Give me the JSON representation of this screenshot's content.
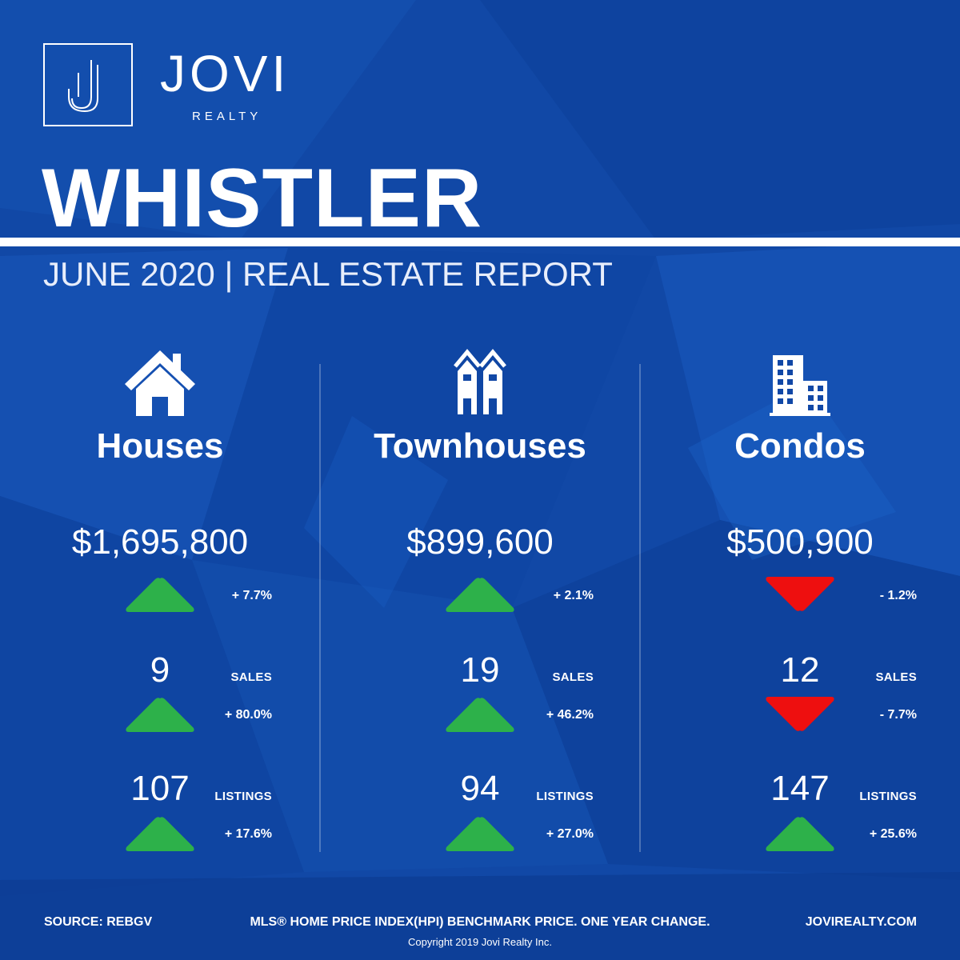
{
  "brand": {
    "name": "JOVI",
    "sub": "REALTY",
    "logo_letter": "J"
  },
  "report": {
    "city": "WHISTLER",
    "subtitle": "JUNE 2020 | REAL ESTATE REPORT"
  },
  "colors": {
    "background": "#1148a6",
    "up": "#2db14a",
    "down": "#ee0f0f",
    "text": "#ffffff"
  },
  "columns": [
    {
      "icon": "house-icon",
      "title": "Houses",
      "price": "$1,695,800",
      "price_change": "+ 7.7%",
      "price_direction": "up",
      "sales": "9",
      "sales_label": "SALES",
      "sales_change": "+ 80.0%",
      "sales_direction": "up",
      "listings": "107",
      "listings_label": "LISTINGS",
      "listings_change": "+ 17.6%",
      "listings_direction": "up"
    },
    {
      "icon": "townhouse-icon",
      "title": "Townhouses",
      "price": "$899,600",
      "price_change": "+ 2.1%",
      "price_direction": "up",
      "sales": "19",
      "sales_label": "SALES",
      "sales_change": "+ 46.2%",
      "sales_direction": "up",
      "listings": "94",
      "listings_label": "LISTINGS",
      "listings_change": "+ 27.0%",
      "listings_direction": "up"
    },
    {
      "icon": "condo-building-icon",
      "title": "Condos",
      "price": "$500,900",
      "price_change": "- 1.2%",
      "price_direction": "down",
      "sales": "12",
      "sales_label": "SALES",
      "sales_change": "- 7.7%",
      "sales_direction": "down",
      "listings": "147",
      "listings_label": "LISTINGS",
      "listings_change": "+ 25.6%",
      "listings_direction": "up"
    }
  ],
  "footer": {
    "source": "SOURCE:  REBGV",
    "note": "MLS® HOME PRICE INDEX(HPI) BENCHMARK PRICE. ONE YEAR CHANGE.",
    "website": "JOVIREALTY.COM",
    "copyright": "Copyright 2019 Jovi Realty Inc."
  }
}
